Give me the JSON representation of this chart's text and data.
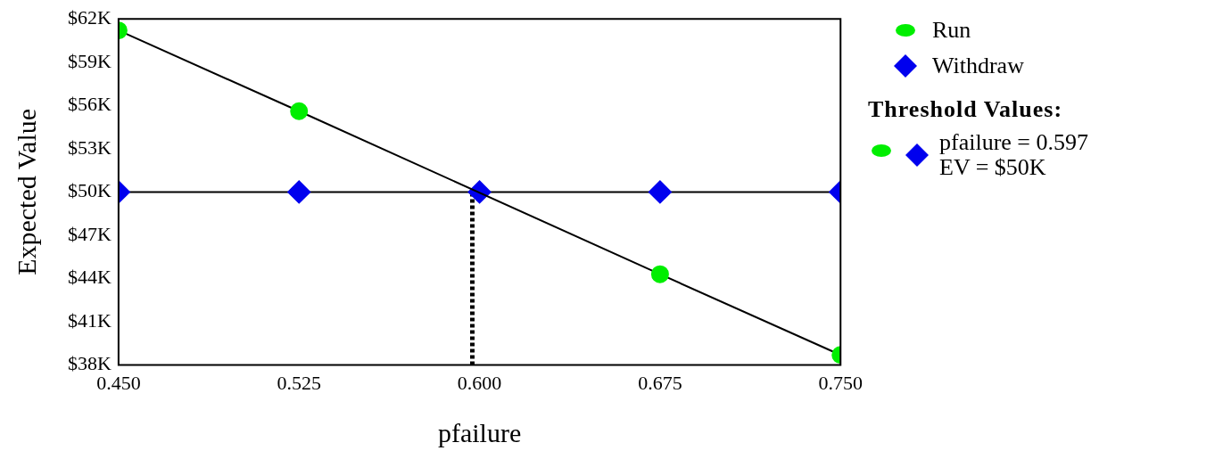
{
  "chart_data": {
    "type": "line",
    "xlabel": "pfailure",
    "ylabel": "Expected Value",
    "xlim": [
      0.45,
      0.75
    ],
    "xticks": [
      {
        "value": 0.45,
        "label": "0.450"
      },
      {
        "value": 0.525,
        "label": "0.525"
      },
      {
        "value": 0.6,
        "label": "0.600"
      },
      {
        "value": 0.675,
        "label": "0.675"
      },
      {
        "value": 0.75,
        "label": "0.750"
      }
    ],
    "ylim": [
      38,
      62
    ],
    "yticks": [
      {
        "value": 38,
        "label": "$38K"
      },
      {
        "value": 41,
        "label": "$41K"
      },
      {
        "value": 44,
        "label": "$44K"
      },
      {
        "value": 47,
        "label": "$47K"
      },
      {
        "value": 50,
        "label": "$50K"
      },
      {
        "value": 53,
        "label": "$53K"
      },
      {
        "value": 56,
        "label": "$56K"
      },
      {
        "value": 59,
        "label": "$59K"
      },
      {
        "value": 62,
        "label": "$62K"
      }
    ],
    "grid": false,
    "legend": "right",
    "series": [
      {
        "name": "Run",
        "color": "#00ee00",
        "marker": "circle",
        "x": [
          0.45,
          0.525,
          0.6,
          0.675,
          0.75
        ],
        "values": [
          61.2,
          55.6,
          null,
          44.3,
          38.7
        ]
      },
      {
        "name": "Withdraw",
        "color": "#0000ee",
        "marker": "diamond",
        "x": [
          0.45,
          0.525,
          0.6,
          0.675,
          0.75
        ],
        "values": [
          50,
          50,
          50,
          50,
          50
        ]
      },
      {
        "color": "#000000",
        "marker": "none",
        "line_style": "dotted",
        "x": [
          0.597,
          0.597
        ],
        "values": [
          38,
          50
        ]
      }
    ],
    "annotations": [
      "Threshold Values:",
      "pfailure = 0.597",
      "EV = $50K"
    ]
  }
}
